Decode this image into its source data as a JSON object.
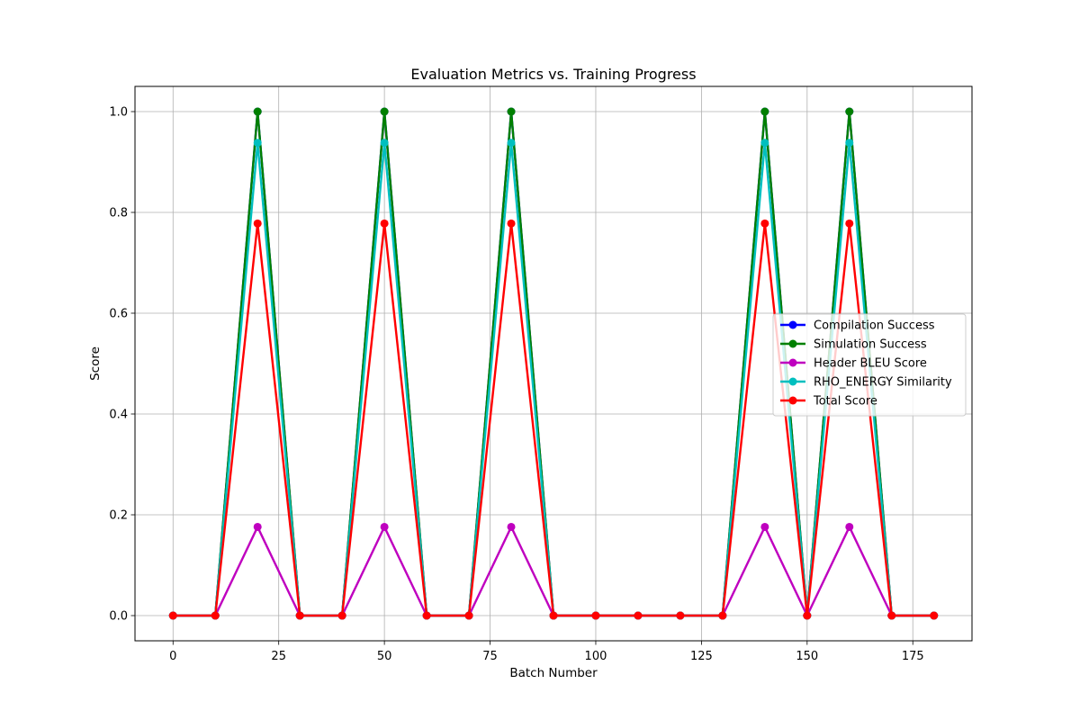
{
  "chart_data": {
    "type": "line",
    "title": "Evaluation Metrics vs. Training Progress",
    "xlabel": "Batch Number",
    "ylabel": "Score",
    "x": [
      0,
      10,
      20,
      30,
      40,
      50,
      60,
      70,
      80,
      90,
      100,
      110,
      120,
      130,
      140,
      150,
      160,
      170,
      180
    ],
    "xlim": [
      -9,
      189
    ],
    "ylim": [
      -0.05,
      1.05
    ],
    "xticks": [
      0,
      25,
      50,
      75,
      100,
      125,
      150,
      175
    ],
    "xtick_labels": [
      "0",
      "25",
      "50",
      "75",
      "100",
      "125",
      "150",
      "175"
    ],
    "yticks": [
      0.0,
      0.2,
      0.4,
      0.6,
      0.8,
      1.0
    ],
    "ytick_labels": [
      "0.0",
      "0.2",
      "0.4",
      "0.6",
      "0.8",
      "1.0"
    ],
    "grid": true,
    "legend_position": "center-right",
    "series": [
      {
        "name": "Compilation Success",
        "color": "#0000ff",
        "values": [
          0,
          0,
          1,
          0,
          0,
          1,
          0,
          0,
          1,
          0,
          0,
          0,
          0,
          0,
          1,
          0,
          1,
          0,
          0
        ]
      },
      {
        "name": "Simulation Success",
        "color": "#008000",
        "values": [
          0,
          0,
          1,
          0,
          0,
          1,
          0,
          0,
          1,
          0,
          0,
          0,
          0,
          0,
          1,
          0,
          1,
          0,
          0
        ]
      },
      {
        "name": "Header BLEU Score",
        "color": "#bf00bf",
        "values": [
          0,
          0,
          0.176,
          0,
          0,
          0.176,
          0,
          0,
          0.176,
          0,
          0,
          0,
          0,
          0,
          0.176,
          0,
          0.176,
          0,
          0
        ]
      },
      {
        "name": "RHO_ENERGY Similarity",
        "color": "#00bfbf",
        "values": [
          0,
          0,
          0.938,
          0,
          0,
          0.938,
          0,
          0,
          0.938,
          0,
          0,
          0,
          0,
          0,
          0.938,
          0,
          0.938,
          0,
          0
        ]
      },
      {
        "name": "Total Score",
        "color": "#ff0000",
        "values": [
          0,
          0,
          0.778,
          0,
          0,
          0.778,
          0,
          0,
          0.778,
          0,
          0,
          0,
          0,
          0,
          0.778,
          0,
          0.778,
          0,
          0
        ]
      }
    ]
  }
}
